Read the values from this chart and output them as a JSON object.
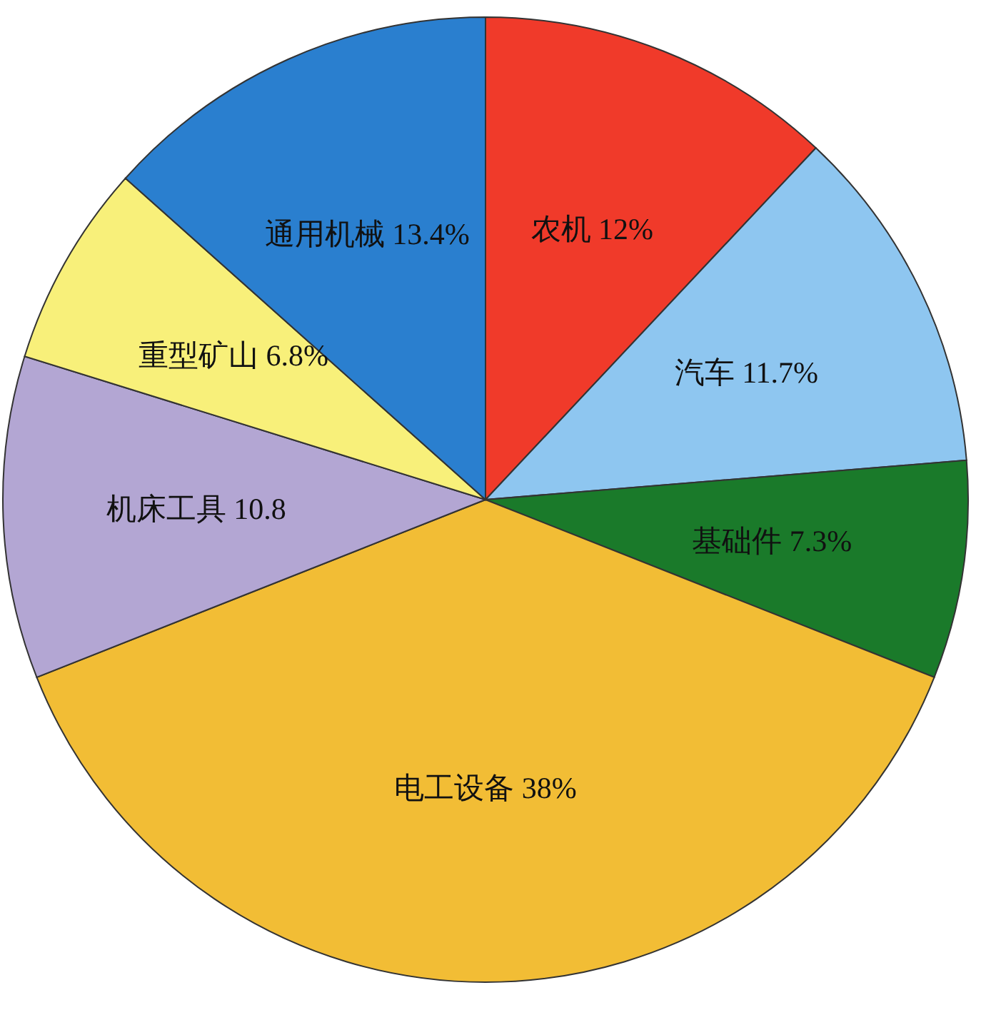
{
  "chart_data": {
    "type": "pie",
    "categories": [
      "农机",
      "汽车",
      "基础件",
      "电工设备",
      "机床工具",
      "重型矿山",
      "通用机械"
    ],
    "values": [
      12,
      11.7,
      7.3,
      38,
      10.8,
      6.8,
      13.4
    ],
    "value_labels": [
      "12%",
      "11.7%",
      "7.3%",
      "38%",
      "10.8",
      "6.8%",
      "13.4%"
    ],
    "colors": [
      "#f03a2a",
      "#8ec6f0",
      "#1a7a2a",
      "#f2bd35",
      "#b3a6d3",
      "#f8f07a",
      "#2a7fcf"
    ]
  }
}
